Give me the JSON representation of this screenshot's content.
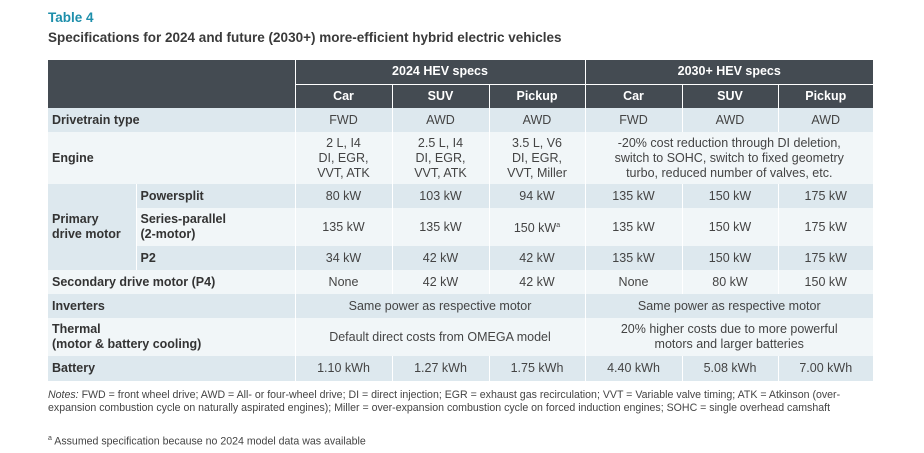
{
  "table": {
    "label": "Table 4",
    "caption": "Specifications for 2024 and future (2030+) more-efficient hybrid electric vehicles",
    "group_2024": "2024 HEV specs",
    "group_2030": "2030+ HEV specs",
    "columns": [
      "Car",
      "SUV",
      "Pickup",
      "Car",
      "SUV",
      "Pickup"
    ],
    "drivetrain": {
      "label": "Drivetrain type",
      "values": [
        "FWD",
        "AWD",
        "AWD",
        "FWD",
        "AWD",
        "AWD"
      ]
    },
    "engine": {
      "label": "Engine",
      "car_2024": [
        "2 L, I4",
        "DI, EGR,",
        "VVT, ATK"
      ],
      "suv_2024": [
        "2.5 L, I4",
        "DI, EGR,",
        "VVT, ATK"
      ],
      "pickup_2024": [
        "3.5 L, V6",
        "DI, EGR,",
        "VVT, Miller"
      ],
      "future": [
        "-20% cost reduction through DI deletion,",
        "switch to SOHC, switch to fixed geometry",
        "turbo, reduced number of valves, etc."
      ]
    },
    "primary": {
      "label_line1": "Primary",
      "label_line2": "drive motor",
      "powersplit": {
        "label": "Powersplit",
        "values": [
          "80 kW",
          "103 kW",
          "94 kW",
          "135 kW",
          "150 kW",
          "175 kW"
        ]
      },
      "series_parallel": {
        "label_line1": "Series-parallel",
        "label_line2": "(2-motor)",
        "values": [
          "135 kW",
          "135 kW",
          "150 kW",
          "135 kW",
          "150 kW",
          "175 kW"
        ],
        "mark": "a"
      },
      "p2": {
        "label": "P2",
        "values": [
          "34 kW",
          "42 kW",
          "42 kW",
          "135 kW",
          "150 kW",
          "175 kW"
        ]
      }
    },
    "secondary": {
      "label": "Secondary drive motor (P4)",
      "values": [
        "None",
        "42 kW",
        "42 kW",
        "None",
        "80 kW",
        "150 kW"
      ]
    },
    "inverters": {
      "label": "Inverters",
      "text_2024": "Same power as respective motor",
      "text_2030": "Same power as respective motor"
    },
    "thermal": {
      "label_line1": "Thermal",
      "label_line2": "(motor & battery cooling)",
      "text_2024": "Default direct costs from OMEGA model",
      "text_2030_line1": "20% higher costs due to more powerful",
      "text_2030_line2": "motors and larger batteries"
    },
    "battery": {
      "label": "Battery",
      "values": [
        "1.10 kWh",
        "1.27 kWh",
        "1.75 kWh",
        "4.40 kWh",
        "5.08 kWh",
        "7.00 kWh"
      ]
    }
  },
  "notes": {
    "prefix": "Notes:",
    "text": " FWD = front wheel drive; AWD = All- or four-wheel drive; DI = direct injection; EGR = exhaust gas recirculation; VVT = Variable valve timing; ATK = Atkinson (over-expansion combustion cycle on naturally aspirated engines); Miller = over-expansion combustion cycle on forced induction engines; SOHC = single overhead camshaft",
    "footnote_mark": "a",
    "footnote_text": " Assumed specification because no 2024 model data was available"
  }
}
